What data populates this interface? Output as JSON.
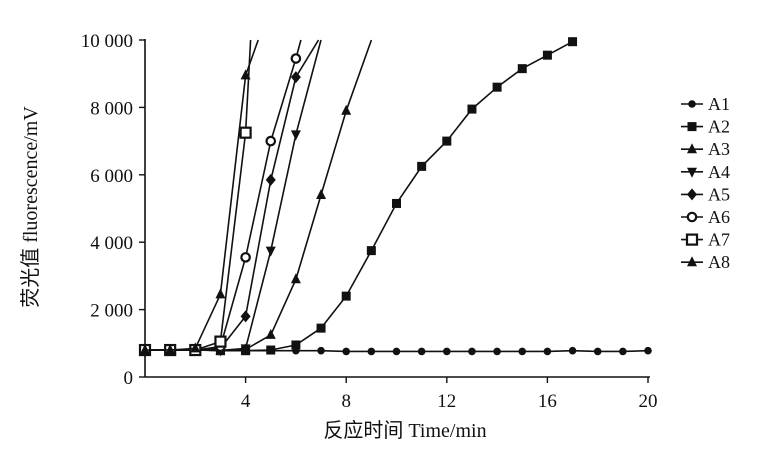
{
  "chart_data": {
    "type": "line",
    "xlabel": "反应时间 Time/min",
    "ylabel": "荧光值 fluorescence/mV",
    "xlim": [
      0,
      20
    ],
    "ylim": [
      0,
      10000
    ],
    "xticks": [
      4,
      8,
      12,
      16,
      20
    ],
    "xtick_labels": [
      "4",
      "8",
      "12",
      "16",
      "20"
    ],
    "yticks": [
      0,
      2000,
      4000,
      6000,
      8000,
      10000
    ],
    "ytick_labels": [
      "0",
      "2 000",
      "4 000",
      "6 000",
      "8 000",
      "10 000"
    ],
    "grid": false,
    "legend_position": "right",
    "series": [
      {
        "name": "A1",
        "marker": "circle",
        "x": [
          0,
          1,
          2,
          3,
          4,
          5,
          6,
          7,
          8,
          9,
          10,
          11,
          12,
          13,
          14,
          15,
          16,
          17,
          18,
          19,
          20
        ],
        "y": [
          800,
          800,
          800,
          790,
          780,
          780,
          780,
          780,
          760,
          760,
          760,
          760,
          760,
          760,
          760,
          760,
          760,
          780,
          760,
          760,
          780
        ]
      },
      {
        "name": "A2",
        "marker": "square",
        "x": [
          0,
          1,
          2,
          3,
          4,
          5,
          6,
          7,
          8,
          9,
          10,
          11,
          12,
          13,
          14,
          15,
          16,
          17
        ],
        "y": [
          800,
          800,
          800,
          780,
          780,
          800,
          950,
          1450,
          2400,
          3750,
          5150,
          6250,
          7000,
          7950,
          8600,
          9150,
          9550,
          9950
        ]
      },
      {
        "name": "A3",
        "marker": "triangle",
        "x": [
          0,
          1,
          2,
          3,
          4,
          5,
          6,
          7,
          8,
          9
        ],
        "y": [
          800,
          800,
          800,
          790,
          820,
          1250,
          2900,
          5400,
          7900,
          10000
        ]
      },
      {
        "name": "A4",
        "marker": "triangle-down",
        "x": [
          0,
          1,
          2,
          3,
          4,
          5,
          6,
          7
        ],
        "y": [
          800,
          800,
          800,
          790,
          850,
          3750,
          7200,
          10000
        ]
      },
      {
        "name": "A5",
        "marker": "diamond",
        "x": [
          0,
          1,
          2,
          3,
          4,
          5,
          6,
          6.9
        ],
        "y": [
          800,
          800,
          800,
          850,
          1800,
          5850,
          8900,
          10000
        ]
      },
      {
        "name": "A6",
        "marker": "circle-open",
        "x": [
          0,
          1,
          2,
          3,
          4,
          5,
          6,
          6.2
        ],
        "y": [
          800,
          800,
          800,
          900,
          3550,
          7000,
          9450,
          10000
        ]
      },
      {
        "name": "A7",
        "marker": "square-open",
        "x": [
          0,
          1,
          2,
          3,
          4,
          4.2
        ],
        "y": [
          800,
          800,
          800,
          1050,
          7250,
          10000
        ]
      },
      {
        "name": "A8",
        "marker": "triangle",
        "x": [
          0,
          1,
          2,
          3,
          4,
          4.5
        ],
        "y": [
          800,
          800,
          850,
          2450,
          8950,
          10000
        ]
      }
    ]
  }
}
